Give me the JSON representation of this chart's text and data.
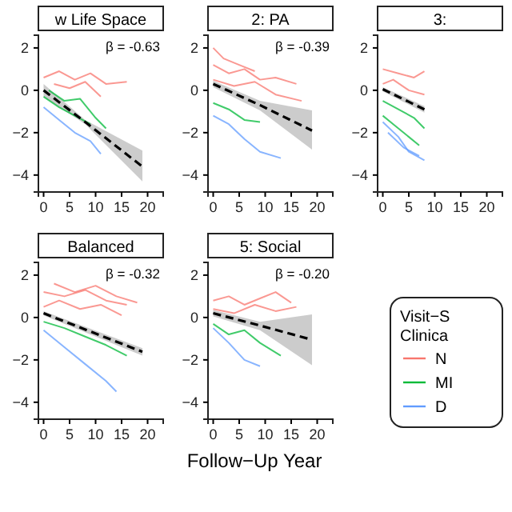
{
  "chart_data": [
    {
      "type": "line",
      "title": "w Life Space",
      "xlim": [
        -1,
        23
      ],
      "ylim": [
        -4.8,
        2.6
      ],
      "xticks": [
        0,
        5,
        10,
        15,
        20
      ],
      "yticks": [
        -4,
        -2,
        0,
        2
      ],
      "annotations": [
        "β = -0.63"
      ],
      "series": [
        {
          "color": "#f8766d",
          "x": [
            0,
            3,
            6,
            9,
            12,
            16
          ],
          "values": [
            0.6,
            0.9,
            0.5,
            0.8,
            0.3,
            0.4
          ]
        },
        {
          "color": "#f8766d",
          "x": [
            2,
            5,
            8,
            11
          ],
          "values": [
            0.3,
            0.1,
            0.4,
            -0.3
          ]
        },
        {
          "color": "#00ba38",
          "x": [
            0,
            3,
            6,
            9
          ],
          "values": [
            -0.3,
            -0.8,
            -1.2,
            -1.6
          ]
        },
        {
          "color": "#00ba38",
          "x": [
            1,
            4,
            7,
            10,
            12
          ],
          "values": [
            0,
            -0.5,
            -0.4,
            -1.3,
            -1.8
          ]
        },
        {
          "color": "#619cff",
          "x": [
            0,
            3,
            6,
            9,
            11
          ],
          "values": [
            -0.8,
            -1.4,
            -2,
            -2.4,
            -3
          ]
        },
        {
          "color": "#000000",
          "line_style": "dashed",
          "x": [
            0,
            8,
            19
          ],
          "values": [
            0,
            -1.5,
            -3.6
          ],
          "lower": [
            -0.3,
            -1.6,
            -4.3
          ],
          "upper": [
            0.3,
            -1.4,
            -2.85
          ]
        }
      ]
    },
    {
      "type": "line",
      "title": "2: PA",
      "xlim": [
        -1,
        23
      ],
      "ylim": [
        -4.8,
        2.6
      ],
      "xticks": [
        0,
        5,
        10,
        15,
        20
      ],
      "yticks": [
        -4,
        -2,
        0,
        2
      ],
      "annotations": [
        "β = -0.39"
      ],
      "series": [
        {
          "color": "#f8766d",
          "x": [
            0,
            3,
            6,
            9,
            12,
            16
          ],
          "values": [
            1.2,
            0.8,
            1,
            0.5,
            0.6,
            0.3
          ]
        },
        {
          "color": "#f8766d",
          "x": [
            0,
            4,
            8,
            12,
            17
          ],
          "values": [
            0.5,
            0.2,
            0.4,
            -0.2,
            -0.5
          ]
        },
        {
          "color": "#f8766d",
          "x": [
            0,
            2,
            5,
            8
          ],
          "values": [
            2,
            1.5,
            1.2,
            0.9
          ]
        },
        {
          "color": "#00ba38",
          "x": [
            0,
            3,
            6,
            9
          ],
          "values": [
            -0.6,
            -0.9,
            -1.4,
            -1.5
          ]
        },
        {
          "color": "#619cff",
          "x": [
            0,
            3,
            6,
            9,
            13
          ],
          "values": [
            -1.2,
            -1.6,
            -2.3,
            -2.9,
            -3.2
          ]
        },
        {
          "color": "#000000",
          "line_style": "dashed",
          "x": [
            0,
            9,
            19
          ],
          "values": [
            0.3,
            -0.7,
            -1.9
          ],
          "lower": [
            0.15,
            -0.95,
            -2.8
          ],
          "upper": [
            0.45,
            -0.5,
            -0.95
          ]
        }
      ]
    },
    {
      "type": "line",
      "title": "3:",
      "xlim": [
        -1,
        23
      ],
      "ylim": [
        -4.8,
        2.6
      ],
      "xticks": [
        0,
        5,
        10,
        15,
        20
      ],
      "yticks": [
        -4,
        -2,
        0,
        2
      ],
      "series": [
        {
          "color": "#f8766d",
          "x": [
            0,
            3,
            6,
            8
          ],
          "values": [
            1,
            0.8,
            0.6,
            0.9
          ]
        },
        {
          "color": "#f8766d",
          "x": [
            0,
            2,
            5,
            8
          ],
          "values": [
            0.3,
            0.5,
            0,
            -0.2
          ]
        },
        {
          "color": "#00ba38",
          "x": [
            0,
            3,
            6,
            8
          ],
          "values": [
            -0.5,
            -0.9,
            -1.3,
            -1.8
          ]
        },
        {
          "color": "#00ba38",
          "x": [
            0,
            2,
            5,
            7
          ],
          "values": [
            -1.2,
            -1.6,
            -2.2,
            -2.6
          ]
        },
        {
          "color": "#619cff",
          "x": [
            0,
            3,
            5,
            8
          ],
          "values": [
            -1.5,
            -2.2,
            -2.9,
            -3.3
          ]
        },
        {
          "color": "#619cff",
          "x": [
            1,
            4,
            7
          ],
          "values": [
            -2,
            -2.7,
            -3.1
          ]
        },
        {
          "color": "#000000",
          "line_style": "dashed",
          "x": [
            0,
            8
          ],
          "values": [
            0.05,
            -0.9
          ],
          "lower": [
            -0.05,
            -1.05
          ],
          "upper": [
            0.15,
            -0.75
          ]
        }
      ]
    },
    {
      "type": "line",
      "title": "Balanced",
      "xlim": [
        -1,
        23
      ],
      "ylim": [
        -4.8,
        2.6
      ],
      "xticks": [
        0,
        5,
        10,
        15,
        20
      ],
      "yticks": [
        -4,
        -2,
        0,
        2
      ],
      "annotations": [
        "β = -0.32"
      ],
      "series": [
        {
          "color": "#f8766d",
          "x": [
            0,
            4,
            8,
            12,
            16
          ],
          "values": [
            1.2,
            1,
            1.3,
            0.8,
            0.6
          ]
        },
        {
          "color": "#f8766d",
          "x": [
            0,
            3,
            7,
            11,
            15
          ],
          "values": [
            0.5,
            0.8,
            0.4,
            0.6,
            0.1
          ]
        },
        {
          "color": "#f8766d",
          "x": [
            2,
            6,
            10,
            14,
            18
          ],
          "values": [
            1.6,
            1.2,
            1.5,
            1,
            0.7
          ]
        },
        {
          "color": "#00ba38",
          "x": [
            0,
            4,
            8,
            12,
            16
          ],
          "values": [
            -0.2,
            -0.5,
            -0.9,
            -1.3,
            -1.8
          ]
        },
        {
          "color": "#619cff",
          "x": [
            0,
            4,
            8,
            12,
            14
          ],
          "values": [
            -0.6,
            -1.4,
            -2.2,
            -3,
            -3.5
          ]
        },
        {
          "color": "#000000",
          "line_style": "dashed",
          "x": [
            0,
            19
          ],
          "values": [
            0.2,
            -1.62
          ],
          "lower": [
            0.1,
            -1.8
          ],
          "upper": [
            0.3,
            -1.45
          ]
        }
      ]
    },
    {
      "type": "line",
      "title": "5: Social",
      "xlabel": "Follow−Up Year",
      "legend": "right",
      "legend_title": "Visit−S\nClinica",
      "xlim": [
        -1,
        23
      ],
      "ylim": [
        -4.8,
        2.6
      ],
      "xticks": [
        0,
        5,
        10,
        15,
        20
      ],
      "yticks": [
        -4,
        -2,
        0,
        2
      ],
      "annotations": [
        "β = -0.20"
      ],
      "series": [
        {
          "name": "N",
          "color": "#f8766d",
          "x": [
            0,
            3,
            6,
            9,
            12,
            15
          ],
          "values": [
            0.8,
            1,
            0.6,
            0.9,
            1.2,
            0.7
          ]
        },
        {
          "color": "#f8766d",
          "x": [
            0,
            4,
            8,
            12,
            16
          ],
          "values": [
            0.4,
            0.2,
            0.6,
            0.3,
            0.5
          ]
        },
        {
          "name": "MI",
          "color": "#00ba38",
          "x": [
            0,
            3,
            6,
            9,
            13
          ],
          "values": [
            -0.3,
            -0.8,
            -0.6,
            -1.2,
            -1.8
          ]
        },
        {
          "name": "D",
          "color": "#619cff",
          "x": [
            0,
            3,
            6,
            9
          ],
          "values": [
            -0.5,
            -1.2,
            -2,
            -2.3
          ]
        },
        {
          "color": "#000000",
          "line_style": "dashed",
          "x": [
            0,
            9,
            19
          ],
          "values": [
            0.2,
            -0.38,
            -1.05
          ],
          "lower": [
            0.05,
            -0.6,
            -2.25
          ],
          "upper": [
            0.35,
            -0.2,
            0.15
          ]
        }
      ]
    }
  ]
}
